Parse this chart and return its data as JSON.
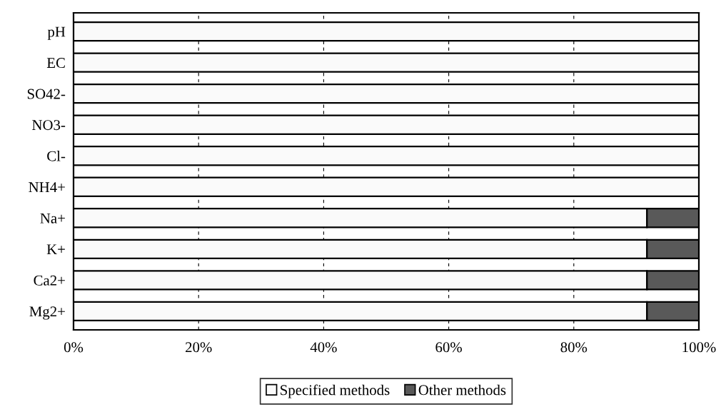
{
  "chart_data": {
    "type": "bar",
    "orientation": "horizontal",
    "stacked": true,
    "categories": [
      "pH",
      "EC",
      "SO42-",
      "NO3-",
      "Cl-",
      "NH4+",
      "Na+",
      "K+",
      "Ca2+",
      "Mg2+"
    ],
    "series": [
      {
        "name": "Specified methods",
        "color": "#fafafa",
        "values": [
          100,
          100,
          100,
          100,
          100,
          100,
          91.7,
          91.7,
          91.7,
          91.7
        ]
      },
      {
        "name": "Other methods",
        "color": "#595959",
        "values": [
          0,
          0,
          0,
          0,
          0,
          0,
          8.3,
          8.3,
          8.3,
          8.3
        ]
      }
    ],
    "xlim": [
      0,
      100
    ],
    "xticks": [
      {
        "value": 0,
        "label": "0%"
      },
      {
        "value": 20,
        "label": "20%"
      },
      {
        "value": 40,
        "label": "40%"
      },
      {
        "value": 60,
        "label": "60%"
      },
      {
        "value": 80,
        "label": "80%"
      },
      {
        "value": 100,
        "label": "100%"
      }
    ],
    "grid": "x",
    "legend": "bottom"
  }
}
